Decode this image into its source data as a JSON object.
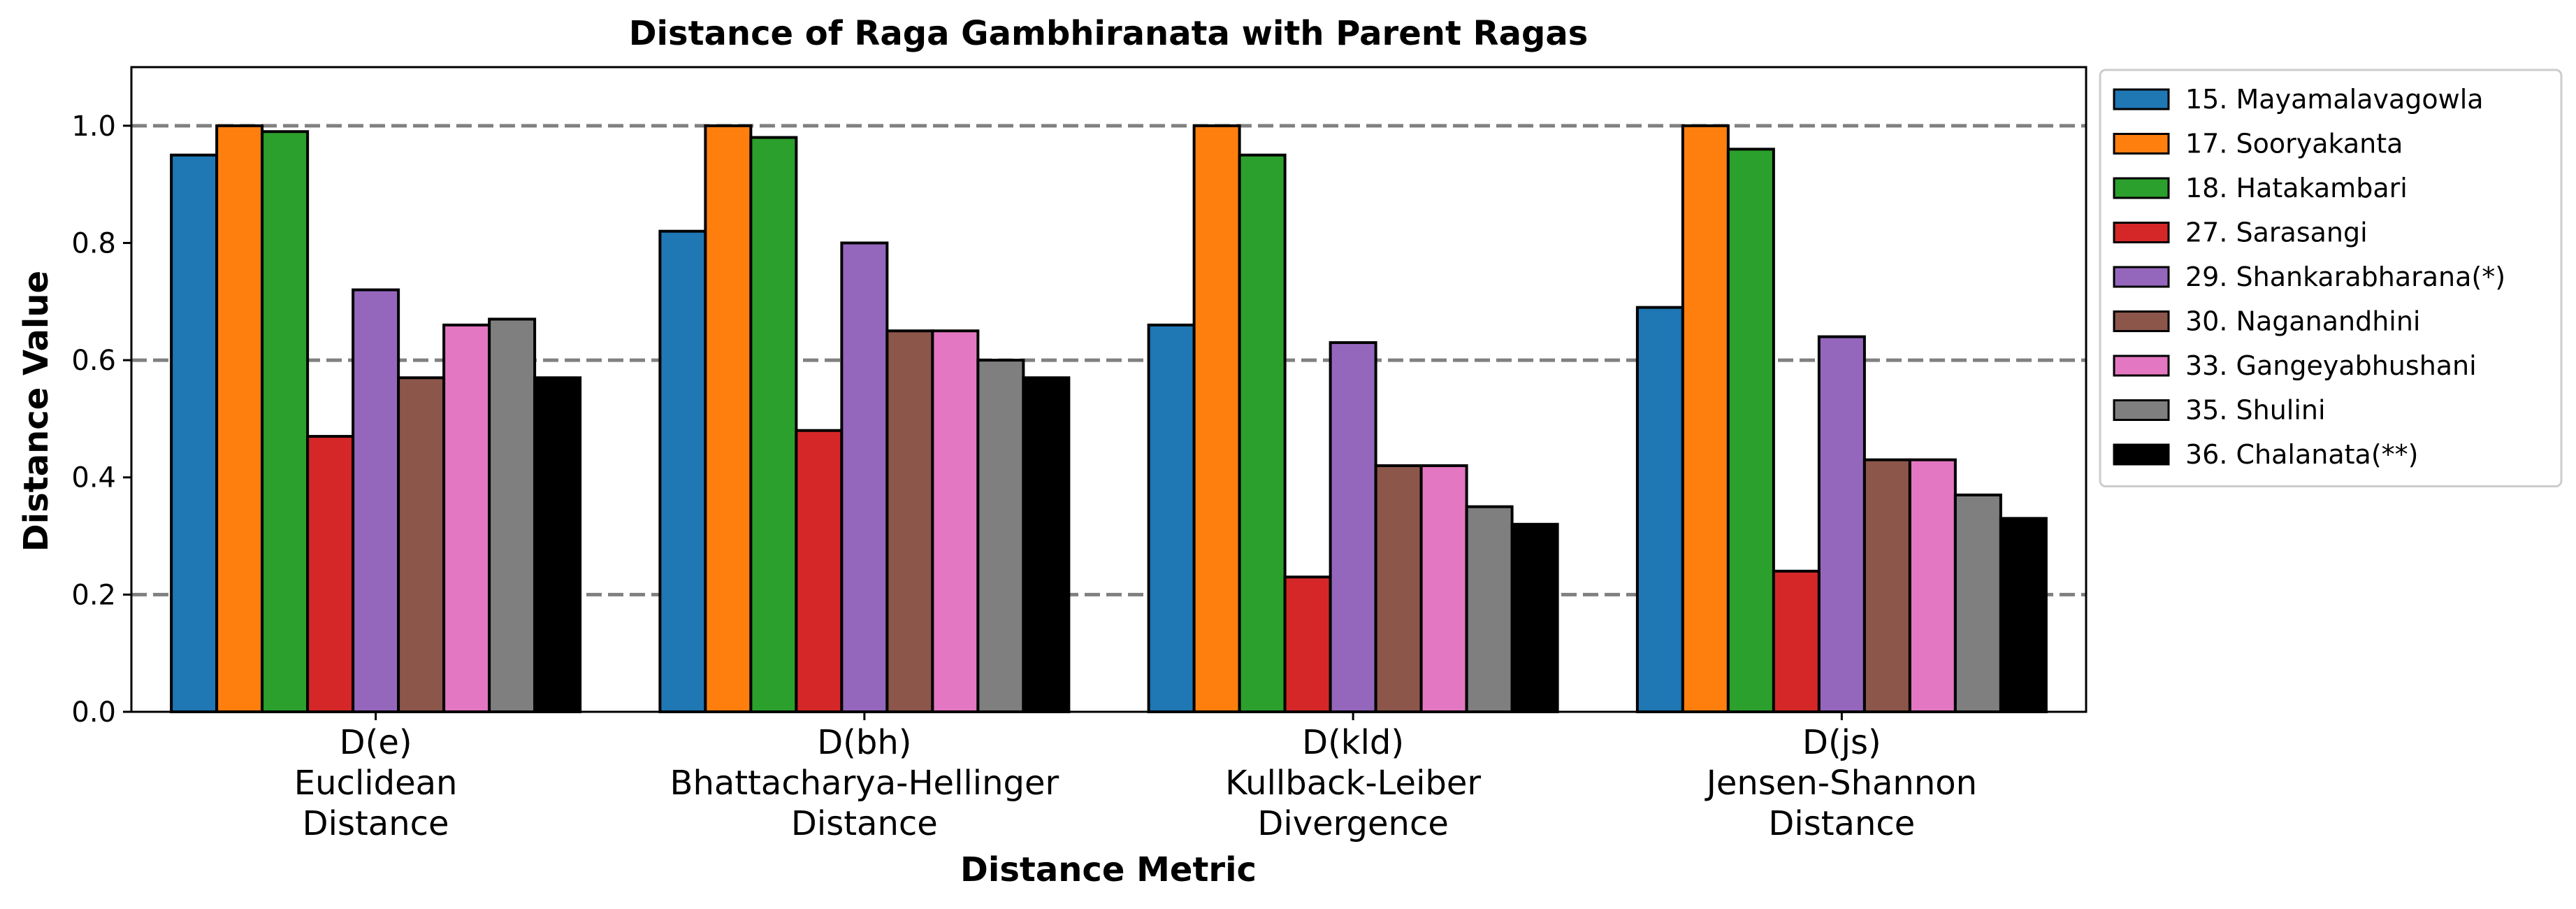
{
  "chart_data": {
    "type": "bar",
    "title": "Distance of Raga Gambhiranata with Parent Ragas",
    "xlabel": "Distance Metric",
    "ylabel": "Distance Value",
    "ylim": [
      0,
      1.1
    ],
    "yticks": [
      "0.0",
      "0.2",
      "0.4",
      "0.6",
      "0.8",
      "1.0"
    ],
    "reference_lines": [
      0.2,
      0.6,
      1.0
    ],
    "legend_position": "outside-right",
    "categories": [
      [
        "D(e)",
        "Euclidean",
        "Distance"
      ],
      [
        "D(bh)",
        "Bhattacharya-Hellinger",
        "Distance"
      ],
      [
        "D(kld)",
        "Kullback-Leiber",
        "Divergence"
      ],
      [
        "D(js)",
        "Jensen-Shannon",
        "Distance"
      ]
    ],
    "series": [
      {
        "name": "15. Mayamalavagowla",
        "color": "#1f77b4",
        "values": [
          0.95,
          0.82,
          0.66,
          0.69
        ]
      },
      {
        "name": "17. Sooryakanta",
        "color": "#ff7f0e",
        "values": [
          1.0,
          1.0,
          1.0,
          1.0
        ]
      },
      {
        "name": "18. Hatakambari",
        "color": "#2ca02c",
        "values": [
          0.99,
          0.98,
          0.95,
          0.96
        ]
      },
      {
        "name": "27. Sarasangi",
        "color": "#d62728",
        "values": [
          0.47,
          0.48,
          0.23,
          0.24
        ]
      },
      {
        "name": "29. Shankarabharana(*)",
        "color": "#9467bd",
        "values": [
          0.72,
          0.8,
          0.63,
          0.64
        ]
      },
      {
        "name": "30. Naganandhini",
        "color": "#8c564b",
        "values": [
          0.57,
          0.65,
          0.42,
          0.43
        ]
      },
      {
        "name": "33. Gangeyabhushani",
        "color": "#e377c2",
        "values": [
          0.66,
          0.65,
          0.42,
          0.43
        ]
      },
      {
        "name": "35. Shulini",
        "color": "#7f7f7f",
        "values": [
          0.67,
          0.6,
          0.35,
          0.37
        ]
      },
      {
        "name": "36. Chalanata(**)",
        "color": "#000000",
        "values": [
          0.57,
          0.57,
          0.32,
          0.33
        ]
      }
    ]
  }
}
